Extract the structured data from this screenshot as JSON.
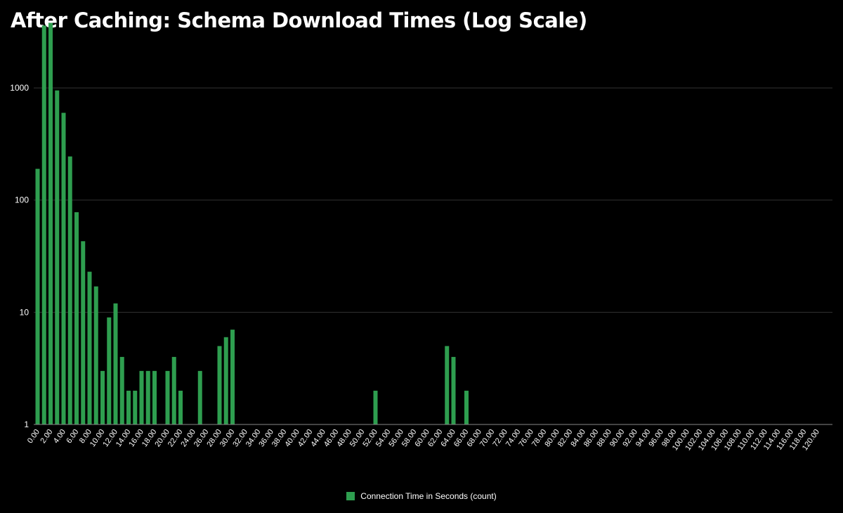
{
  "chart_data": {
    "type": "bar",
    "title": "After Caching: Schema Download Times (Log Scale)",
    "xlabel": "",
    "ylabel": "",
    "y_scale": "log",
    "ylim": [
      1,
      5000
    ],
    "y_ticks": [
      1,
      10,
      100,
      1000
    ],
    "y_tick_labels": [
      "1",
      "10",
      "100",
      "1000"
    ],
    "grid": true,
    "legend_position": "bottom-center",
    "colors": {
      "bar": "#2e9e4f",
      "background": "#000000",
      "grid": "#333333",
      "text": "#ffffff"
    },
    "categories": [
      "0.00",
      "1.00",
      "2.00",
      "3.00",
      "4.00",
      "5.00",
      "6.00",
      "7.00",
      "8.00",
      "9.00",
      "10.00",
      "11.00",
      "12.00",
      "13.00",
      "14.00",
      "15.00",
      "16.00",
      "17.00",
      "18.00",
      "19.00",
      "20.00",
      "21.00",
      "22.00",
      "23.00",
      "24.00",
      "25.00",
      "26.00",
      "27.00",
      "28.00",
      "29.00",
      "30.00",
      "31.00",
      "32.00",
      "33.00",
      "34.00",
      "35.00",
      "36.00",
      "37.00",
      "38.00",
      "39.00",
      "40.00",
      "41.00",
      "42.00",
      "43.00",
      "44.00",
      "45.00",
      "46.00",
      "47.00",
      "48.00",
      "49.00",
      "50.00",
      "51.00",
      "52.00",
      "53.00",
      "54.00",
      "55.00",
      "56.00",
      "57.00",
      "58.00",
      "59.00",
      "60.00",
      "61.00",
      "62.00",
      "63.00",
      "64.00",
      "65.00",
      "66.00",
      "67.00",
      "68.00",
      "69.00",
      "70.00",
      "71.00",
      "72.00",
      "73.00",
      "74.00",
      "75.00",
      "76.00",
      "77.00",
      "78.00",
      "79.00",
      "80.00",
      "81.00",
      "82.00",
      "83.00",
      "84.00",
      "85.00",
      "86.00",
      "87.00",
      "88.00",
      "89.00",
      "90.00",
      "91.00",
      "92.00",
      "93.00",
      "94.00",
      "95.00",
      "96.00",
      "97.00",
      "98.00",
      "99.00",
      "100.00",
      "101.00",
      "102.00",
      "103.00",
      "104.00",
      "105.00",
      "106.00",
      "107.00",
      "108.00",
      "109.00",
      "110.00",
      "111.00",
      "112.00",
      "113.00",
      "114.00",
      "115.00",
      "116.00",
      "117.00",
      "118.00",
      "119.00",
      "120.00"
    ],
    "x_tick_labels": [
      "0.00",
      "2.00",
      "4.00",
      "6.00",
      "8.00",
      "10.00",
      "12.00",
      "14.00",
      "16.00",
      "18.00",
      "20.00",
      "22.00",
      "24.00",
      "26.00",
      "28.00",
      "30.00",
      "32.00",
      "34.00",
      "36.00",
      "38.00",
      "40.00",
      "42.00",
      "44.00",
      "46.00",
      "48.00",
      "50.00",
      "52.00",
      "54.00",
      "56.00",
      "58.00",
      "60.00",
      "62.00",
      "64.00",
      "66.00",
      "68.00",
      "70.00",
      "72.00",
      "74.00",
      "76.00",
      "78.00",
      "80.00",
      "82.00",
      "84.00",
      "86.00",
      "88.00",
      "90.00",
      "92.00",
      "94.00",
      "96.00",
      "98.00",
      "100.00",
      "102.00",
      "104.00",
      "106.00",
      "108.00",
      "110.00",
      "112.00",
      "114.00",
      "116.00",
      "118.00",
      "120.00"
    ],
    "series": [
      {
        "name": "Connection Time in Seconds (count)",
        "values": [
          190,
          3600,
          3800,
          950,
          600,
          245,
          78,
          43,
          23,
          17,
          3,
          9,
          12,
          4,
          2,
          2,
          3,
          3,
          3,
          0,
          3,
          4,
          2,
          0,
          0,
          3,
          0,
          0,
          5,
          6,
          7,
          0,
          0,
          0,
          0,
          0,
          0,
          0,
          0,
          0,
          0,
          0,
          0,
          0,
          0,
          0,
          0,
          0,
          0,
          0,
          0,
          0,
          2,
          0,
          0,
          0,
          0,
          0,
          0,
          0,
          0,
          0,
          0,
          5,
          4,
          0,
          2,
          0,
          0,
          0,
          0,
          0,
          0,
          0,
          0,
          0,
          0,
          0,
          0,
          0,
          0,
          0,
          0,
          0,
          0,
          0,
          0,
          0,
          0,
          0,
          0,
          0,
          0,
          0,
          0,
          0,
          0,
          0,
          0,
          0,
          0,
          0,
          0,
          0,
          0,
          0,
          0,
          0,
          0,
          0,
          0,
          0,
          0,
          0,
          0,
          0,
          0,
          0,
          0,
          0,
          0
        ]
      }
    ]
  }
}
